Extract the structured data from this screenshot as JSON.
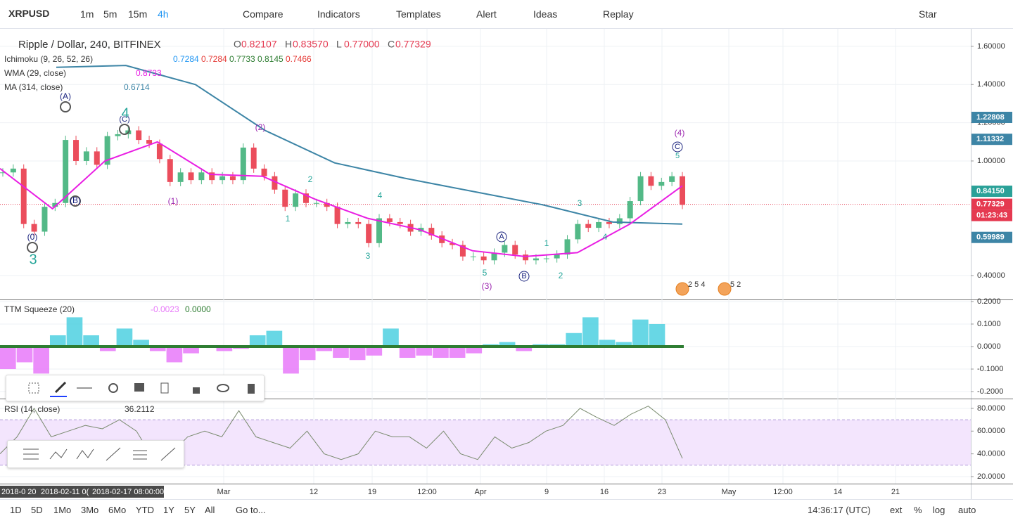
{
  "toolbar": {
    "symbol": "XRPUSD",
    "intervals": [
      "1m",
      "5m",
      "15m",
      "4h"
    ],
    "buttons": [
      "Compare",
      "Indicators",
      "Templates",
      "Alert",
      "Ideas",
      "Replay"
    ],
    "star": "Star"
  },
  "legend": {
    "title": "Ripple / Dollar, 240, BITFINEX",
    "ohlc": [
      {
        "key": "O",
        "value": "0.82107"
      },
      {
        "key": "H",
        "value": "0.83570"
      },
      {
        "key": "L",
        "value": "0.77000"
      },
      {
        "key": "C",
        "value": "0.77329"
      }
    ],
    "indicators": [
      {
        "name": "Ichimoku (9, 26, 52, 26)",
        "values": [
          "0.7284",
          "0.7284",
          "0.7733",
          "0.8145",
          "0.7466"
        ],
        "colors": [
          "#2196f3",
          "#e53935",
          "#2e7d32",
          "#2e7d32",
          "#e53935"
        ]
      },
      {
        "name": "WMA (29, close)",
        "values": [
          "0.8733"
        ],
        "colors": [
          "#e91ee3"
        ]
      },
      {
        "name": "MA (314, close)",
        "values": [
          "0.6714"
        ],
        "colors": [
          "#3d85a6"
        ]
      }
    ]
  },
  "price_pane": {
    "ylim": [
      0.275,
      1.677
    ],
    "yticks": [
      {
        "value": 1.6,
        "label": "1.60000"
      },
      {
        "value": 1.4,
        "label": "1.40000"
      },
      {
        "value": 1.2,
        "label": "1.20000"
      },
      {
        "value": 1.0,
        "label": "1.00000"
      },
      {
        "value": 0.4,
        "label": "0.40000"
      }
    ],
    "price_tags": [
      {
        "value": 1.22808,
        "label": "1.22808",
        "color": "#3d85a6"
      },
      {
        "value": 1.11332,
        "label": "1.11332",
        "color": "#3d85a6"
      },
      {
        "value": 0.8415,
        "label": "0.84150",
        "color": "#2aa198"
      },
      {
        "value": 0.77329,
        "label": "0.77329",
        "color": "#e53950"
      },
      {
        "value": 0.59989,
        "label": "0.59989",
        "color": "#3d85a6"
      }
    ],
    "countdown": "01:23:43",
    "close": [
      0.94,
      0.96,
      0.67,
      0.63,
      0.76,
      0.78,
      1.11,
      1.0,
      1.05,
      0.98,
      1.13,
      1.14,
      1.16,
      1.11,
      1.09,
      1.01,
      0.89,
      0.94,
      0.9,
      0.94,
      0.9,
      0.92,
      0.9,
      1.07,
      0.96,
      0.92,
      0.85,
      0.76,
      0.83,
      0.78,
      0.78,
      0.76,
      0.67,
      0.68,
      0.67,
      0.57,
      0.7,
      0.68,
      0.67,
      0.63,
      0.65,
      0.61,
      0.57,
      0.56,
      0.5,
      0.5,
      0.48,
      0.52,
      0.56,
      0.51,
      0.48,
      0.49,
      0.49,
      0.51,
      0.59,
      0.67,
      0.65,
      0.68,
      0.67,
      0.7,
      0.79,
      0.92,
      0.87,
      0.89,
      0.92,
      0.77
    ],
    "ma314": [
      1.49,
      1.5,
      1.4,
      1.16,
      0.99,
      0.91,
      0.84,
      0.77,
      0.68,
      0.67
    ],
    "wma": [
      0.96,
      0.75,
      1.0,
      1.1,
      0.93,
      0.92,
      0.8,
      0.7,
      0.64,
      0.53,
      0.5,
      0.52,
      0.67,
      0.87
    ],
    "waves": [
      "(A)",
      "4",
      "(C)",
      "(B)",
      "(0)",
      "3",
      "(1)",
      "(2)",
      "2",
      "1",
      "4",
      "3",
      "5",
      "(3)",
      "A",
      "B",
      "1",
      "2",
      "3",
      "4",
      "(4)",
      "C",
      "5"
    ],
    "earnings": [
      "2 5 4",
      "5 2"
    ]
  },
  "ttm_pane": {
    "title": "TTM Squeeze (20)",
    "readouts": [
      "-0.0023",
      "0.0000"
    ],
    "ylim": [
      -0.228,
      0.203
    ],
    "yticks": [
      {
        "value": 0.2,
        "label": "0.2000"
      },
      {
        "value": 0.1,
        "label": "0.1000"
      },
      {
        "value": 0,
        "label": "0.0000"
      },
      {
        "value": -0.1,
        "label": "-0.1000"
      },
      {
        "value": -0.2,
        "label": "-0.2000"
      }
    ],
    "values": [
      -0.1,
      -0.07,
      -0.12,
      0.05,
      0.13,
      0.05,
      -0.02,
      0.08,
      0.03,
      -0.02,
      -0.07,
      -0.03,
      0.0,
      -0.02,
      -0.01,
      0.05,
      0.07,
      -0.12,
      -0.06,
      -0.02,
      -0.05,
      -0.06,
      -0.04,
      0.08,
      -0.05,
      -0.04,
      -0.05,
      -0.05,
      -0.03,
      0.01,
      0.02,
      -0.02,
      0.01,
      0.01,
      0.06,
      0.13,
      0.03,
      0.02,
      0.12,
      0.1,
      0.0
    ]
  },
  "rsi_pane": {
    "title": "RSI (14, close)",
    "readout": "36.2112",
    "ylim": [
      13.8,
      88
    ],
    "yticks": [
      {
        "value": 80,
        "label": "80.0000"
      },
      {
        "value": 60,
        "label": "60.0000"
      },
      {
        "value": 40,
        "label": "40.0000"
      },
      {
        "value": 20,
        "label": "20.0000"
      }
    ],
    "bands": [
      30,
      70
    ],
    "values": [
      40,
      55,
      80,
      55,
      60,
      65,
      62,
      70,
      60,
      35,
      40,
      55,
      60,
      55,
      78,
      55,
      50,
      45,
      60,
      40,
      35,
      40,
      60,
      55,
      55,
      45,
      60,
      40,
      35,
      55,
      45,
      50,
      60,
      65,
      80,
      72,
      65,
      75,
      82,
      70,
      36
    ]
  },
  "time_axis": {
    "labels": [
      "2018-0 20",
      "2018-02-11 0(",
      "2018-02-17 08:00:00",
      "Mar",
      "12",
      "19",
      "12:00",
      "Apr",
      "9",
      "16",
      "23",
      "May",
      "12:00",
      "14",
      "21"
    ]
  },
  "bottom": {
    "ranges": [
      "1D",
      "5D",
      "1Mo",
      "3Mo",
      "6Mo",
      "YTD",
      "1Y",
      "5Y",
      "All"
    ],
    "goto": "Go to...",
    "clock": "14:36:17 (UTC)",
    "options": [
      "ext",
      "%",
      "log",
      "auto"
    ]
  }
}
